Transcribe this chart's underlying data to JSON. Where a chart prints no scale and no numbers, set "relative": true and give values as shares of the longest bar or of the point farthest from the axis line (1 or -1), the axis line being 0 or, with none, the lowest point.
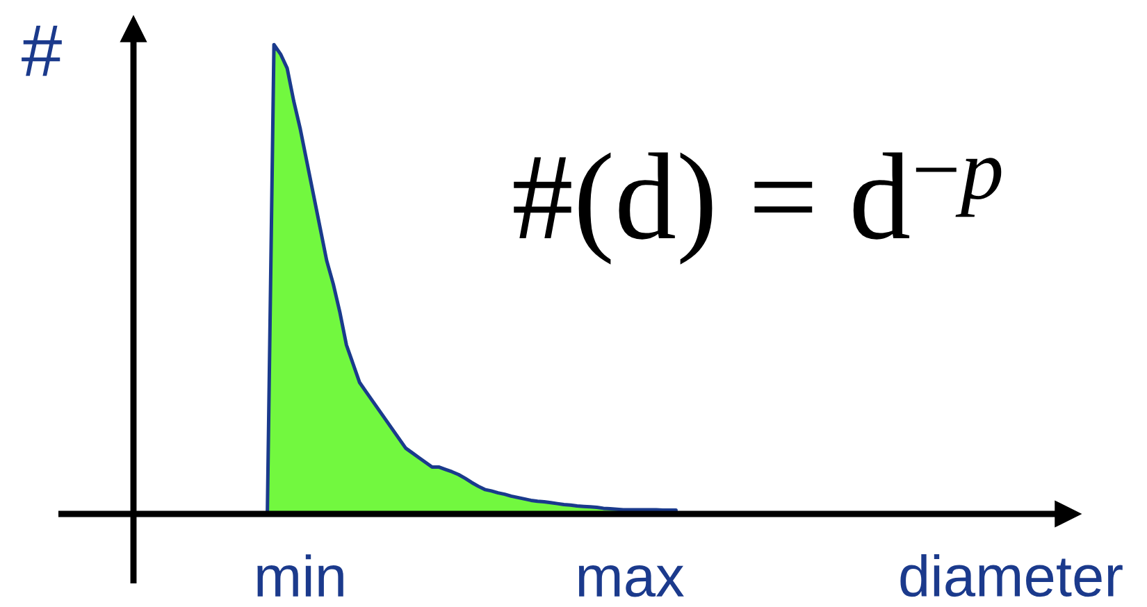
{
  "chart_data": {
    "type": "area",
    "relative": true,
    "categories": [
      null,
      null,
      null,
      null,
      null,
      "min",
      null,
      null,
      null,
      null,
      null,
      null,
      null,
      null,
      null,
      null,
      null,
      null,
      null,
      null,
      null,
      null,
      null,
      null,
      null,
      null,
      null,
      null,
      null,
      null,
      null,
      null,
      null,
      null,
      null,
      null,
      null,
      null,
      null,
      null,
      null,
      null,
      null,
      null,
      null,
      null,
      null,
      null,
      null,
      null,
      null,
      null,
      null,
      null,
      null,
      "max",
      null,
      null,
      null,
      null,
      null,
      null,
      null
    ],
    "values": [
      0,
      1,
      0.98,
      0.95,
      0.88,
      0.82,
      0.75,
      0.68,
      0.61,
      0.54,
      0.49,
      0.43,
      0.36,
      0.32,
      0.28,
      0.26,
      0.24,
      0.22,
      0.2,
      0.18,
      0.16,
      0.14,
      0.13,
      0.12,
      0.11,
      0.1,
      0.1,
      0.095,
      0.09,
      0.084,
      0.076,
      0.067,
      0.059,
      0.052,
      0.049,
      0.045,
      0.042,
      0.038,
      0.035,
      0.032,
      0.029,
      0.027,
      0.026,
      0.024,
      0.022,
      0.02,
      0.019,
      0.017,
      0.016,
      0.015,
      0.014,
      0.012,
      0.011,
      0.01,
      0.009,
      0.009,
      0.009,
      0.009,
      0.009,
      0.009,
      0.008,
      0.008,
      0.008
    ],
    "color": "#72f83f",
    "xlabel": "diameter",
    "ylabel": "#",
    "tick_labels": "x",
    "annotations": [
      "#(d) = d$^{−p}$"
    ]
  }
}
